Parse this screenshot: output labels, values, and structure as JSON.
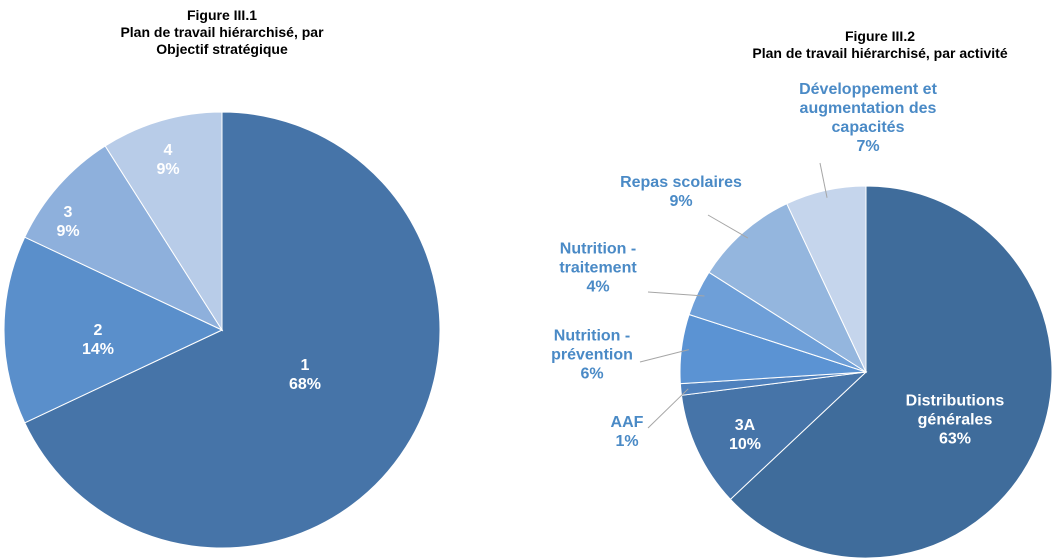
{
  "chart_data": [
    {
      "type": "pie",
      "title": "Figure III.1",
      "subtitle": "Plan de travail hiérarchisé, par Objectif stratégique",
      "categories": [
        "1",
        "2",
        "3",
        "4"
      ],
      "values": [
        68,
        14,
        9,
        9
      ],
      "value_labels": [
        "68%",
        "14%",
        "9%",
        "9%"
      ],
      "colors": [
        "#4674a8",
        "#5a8fcb",
        "#8eb0dc",
        "#b8cce8"
      ]
    },
    {
      "type": "pie",
      "title": "Figure III.2",
      "subtitle": "Plan de travail hiérarchisé, par activité",
      "categories": [
        "Distributions générales",
        "3A",
        "AAF",
        "Nutrition - prévention",
        "Nutrition - traitement",
        "Repas scolaires",
        "Développement et augmentation des capacités"
      ],
      "values": [
        63,
        10,
        1,
        6,
        4,
        9,
        7
      ],
      "value_labels": [
        "63%",
        "10%",
        "1%",
        "6%",
        "4%",
        "9%",
        "7%"
      ],
      "colors": [
        "#3f6c9b",
        "#4674a8",
        "#4f81bd",
        "#5b93d3",
        "#6e9fd8",
        "#94b6de",
        "#c5d5ec"
      ]
    }
  ]
}
